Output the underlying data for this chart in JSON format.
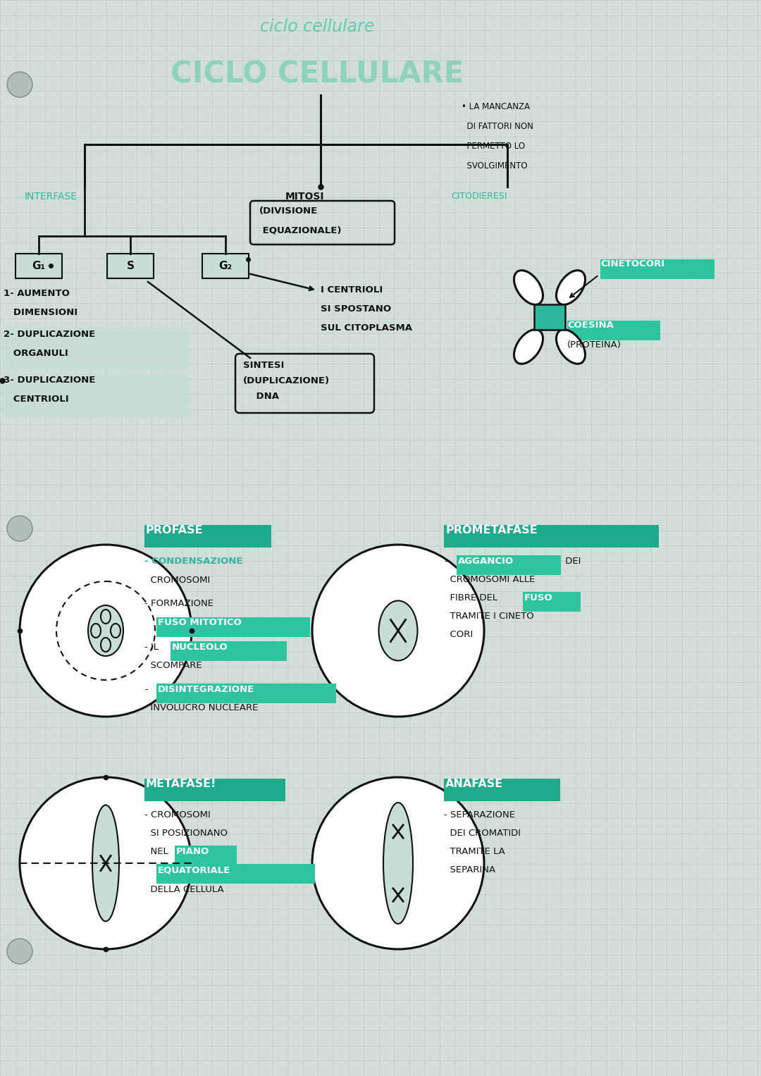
{
  "bg_color": "#cdd9d5",
  "grid_color": "#aabfbb",
  "teal": "#2db89e",
  "black": "#111111",
  "highlight_bg": "#2ec4a0",
  "highlight_bg2": "#1faa8c",
  "green_light": "#c8ddd8",
  "note_text_lines": [
    "• LA MANCANZA",
    "  DI FATTORI NON",
    "  PERMETTO LO",
    "  SVOLGIMENTO"
  ],
  "interfase_label": "INTERFASE",
  "mitosi_label": "MITOSI",
  "citodieresi_label": "CITODIERESI",
  "divisione_line1": "(DIVISIONE",
  "divisione_line2": " EQUAZIONALE)",
  "g1_label": "G₁",
  "s_label": "S",
  "g2_label": "G₂",
  "centrioli_lines": [
    "I CENTRIOLI",
    "SI SPOSTANO",
    "SUL CITOPLASMA"
  ],
  "sintesi_lines": [
    "SINTESI",
    "(DUPLICAZIONE)",
    "    DNA"
  ],
  "item1_lines": [
    "1- AUMENTO",
    "   DIMENSIONI"
  ],
  "item2_lines": [
    "2- DUPLICAZIONE",
    "   ORGANULI"
  ],
  "item3_lines": [
    "3- DUPLICAZIONE",
    "   CENTRIOLI"
  ],
  "cinetocori_label": "CINETOCORI",
  "coesina_line1": "COESINA",
  "coesina_line2": "(PROTEINA)",
  "profase_label": "PROFASE",
  "prometafase_label": "PROMETAFASE",
  "metafase_label": "METAFASE!",
  "anafase_label": "ANAFASE"
}
